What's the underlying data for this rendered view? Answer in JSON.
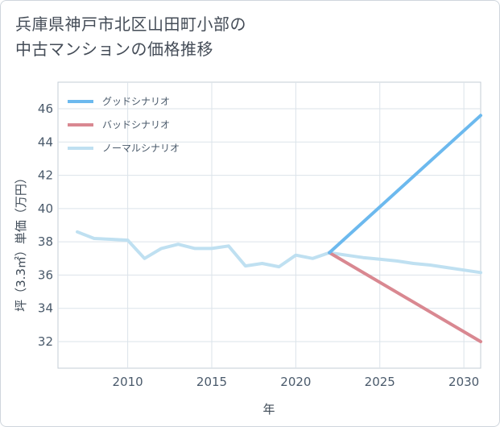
{
  "title_lines": [
    "兵庫県神戸市北区山田町小部の",
    "中古マンションの価格推移"
  ],
  "chart_data": {
    "type": "line",
    "xlabel": "年",
    "ylabel": "坪（3.3㎡）単価（万円）",
    "xlim": [
      2005.85,
      2031
    ],
    "ylim": [
      30.4,
      47.6
    ],
    "x_ticks": [
      2010,
      2015,
      2020,
      2025,
      2030
    ],
    "x_tick_labels": [
      "2010",
      "2015",
      "2020",
      "2025",
      "2030"
    ],
    "y_ticks": [
      32,
      34,
      36,
      38,
      40,
      42,
      44,
      46
    ],
    "y_tick_labels": [
      "32",
      "34",
      "36",
      "38",
      "40",
      "42",
      "44",
      "46"
    ],
    "grid": true,
    "legend_position": "top-left",
    "series": [
      {
        "name": "グッドシナリオ",
        "color": "#6cb9ee",
        "x": [
          2022,
          2031
        ],
        "values": [
          37.35,
          45.6
        ]
      },
      {
        "name": "バッドシナリオ",
        "color": "#d98891",
        "x": [
          2022,
          2031
        ],
        "values": [
          37.35,
          32.0
        ]
      },
      {
        "name": "ノーマルシナリオ",
        "color": "#bfe0f1",
        "x": [
          2007,
          2008,
          2009,
          2010,
          2011,
          2012,
          2013,
          2014,
          2015,
          2016,
          2017,
          2018,
          2019,
          2020,
          2021,
          2022,
          2023,
          2024,
          2025,
          2026,
          2027,
          2028,
          2029,
          2030,
          2031
        ],
        "values": [
          38.6,
          38.2,
          38.15,
          38.1,
          37.0,
          37.6,
          37.85,
          37.6,
          37.6,
          37.75,
          36.55,
          36.7,
          36.5,
          37.2,
          37.0,
          37.35,
          37.2,
          37.05,
          36.95,
          36.85,
          36.7,
          36.6,
          36.45,
          36.3,
          36.15
        ]
      }
    ]
  }
}
